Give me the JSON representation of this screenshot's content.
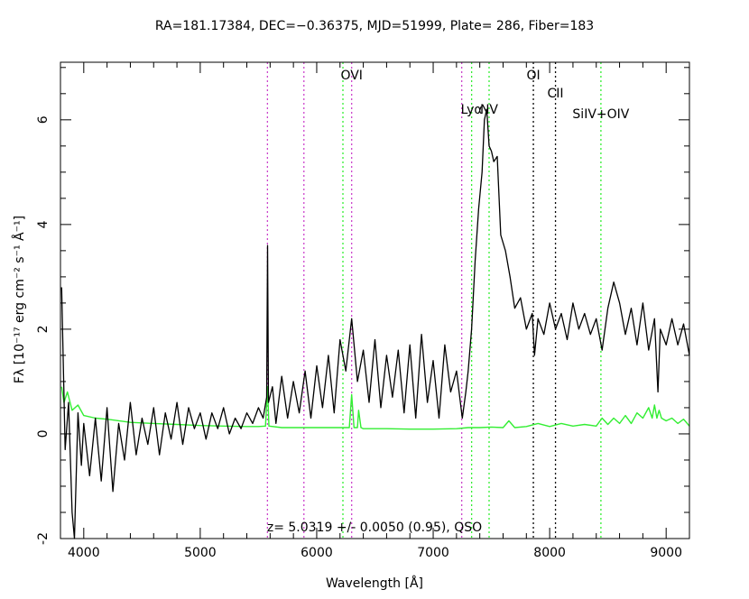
{
  "chart_data": {
    "type": "line",
    "title": "RA=181.17384, DEC=−0.36375, MJD=51999, Plate= 286, Fiber=183",
    "xlabel": "Wavelength [Å]",
    "ylabel": "Fλ [10⁻¹⁷ erg cm⁻² s⁻¹ Å⁻¹]",
    "xlim": [
      3800,
      9200
    ],
    "ylim": [
      -2,
      7.1
    ],
    "x_ticks": [
      4000,
      5000,
      6000,
      7000,
      8000,
      9000
    ],
    "y_ticks": [
      -2,
      0,
      2,
      4,
      6
    ],
    "annotation": "z= 5.0319 +/- 0.0050 (0.95), QSO",
    "series": [
      {
        "color": "#000000",
        "role": "flux",
        "x": [
          3810,
          3840,
          3870,
          3900,
          3920,
          3950,
          3980,
          4000,
          4050,
          4100,
          4150,
          4200,
          4250,
          4300,
          4350,
          4400,
          4450,
          4500,
          4550,
          4600,
          4650,
          4700,
          4750,
          4800,
          4850,
          4900,
          4950,
          5000,
          5050,
          5100,
          5150,
          5200,
          5250,
          5300,
          5350,
          5400,
          5450,
          5500,
          5540,
          5570,
          5578,
          5586,
          5620,
          5650,
          5700,
          5750,
          5800,
          5850,
          5900,
          5950,
          6000,
          6050,
          6100,
          6150,
          6200,
          6250,
          6300,
          6350,
          6400,
          6450,
          6500,
          6550,
          6600,
          6650,
          6700,
          6750,
          6800,
          6850,
          6900,
          6950,
          7000,
          7050,
          7100,
          7150,
          7200,
          7250,
          7280,
          7300,
          7330,
          7360,
          7390,
          7420,
          7440,
          7460,
          7480,
          7500,
          7520,
          7550,
          7580,
          7620,
          7660,
          7700,
          7750,
          7800,
          7850,
          7870,
          7900,
          7950,
          8000,
          8050,
          8100,
          8150,
          8200,
          8250,
          8300,
          8350,
          8400,
          8450,
          8500,
          8550,
          8600,
          8650,
          8700,
          8750,
          8800,
          8850,
          8900,
          8930,
          8950,
          9000,
          9050,
          9100,
          9150,
          9200
        ],
        "y": [
          2.8,
          -0.3,
          0.6,
          -1.5,
          -2.0,
          0.4,
          -0.6,
          0.2,
          -0.8,
          0.3,
          -0.9,
          0.5,
          -1.1,
          0.2,
          -0.5,
          0.6,
          -0.4,
          0.3,
          -0.2,
          0.5,
          -0.4,
          0.4,
          -0.1,
          0.6,
          -0.2,
          0.5,
          0.1,
          0.4,
          -0.1,
          0.4,
          0.1,
          0.5,
          0.0,
          0.3,
          0.1,
          0.4,
          0.2,
          0.5,
          0.3,
          0.7,
          3.6,
          0.6,
          0.9,
          0.2,
          1.1,
          0.3,
          1.0,
          0.4,
          1.2,
          0.3,
          1.3,
          0.5,
          1.5,
          0.4,
          1.8,
          1.2,
          2.2,
          1.0,
          1.6,
          0.6,
          1.8,
          0.5,
          1.5,
          0.7,
          1.6,
          0.4,
          1.7,
          0.3,
          1.9,
          0.6,
          1.4,
          0.3,
          1.7,
          0.8,
          1.2,
          0.3,
          0.8,
          1.2,
          2.0,
          3.3,
          4.3,
          5.0,
          6.0,
          6.2,
          5.5,
          5.4,
          5.2,
          5.3,
          3.8,
          3.5,
          3.0,
          2.4,
          2.6,
          2.0,
          2.3,
          1.5,
          2.2,
          1.9,
          2.5,
          2.0,
          2.3,
          1.8,
          2.5,
          2.0,
          2.3,
          1.9,
          2.2,
          1.6,
          2.4,
          2.9,
          2.5,
          1.9,
          2.4,
          1.7,
          2.5,
          1.6,
          2.2,
          0.8,
          2.0,
          1.7,
          2.2,
          1.7,
          2.1,
          1.5
        ]
      },
      {
        "color": "#33ee33",
        "role": "noise",
        "x": [
          3810,
          3830,
          3860,
          3900,
          3950,
          4000,
          4100,
          4200,
          4400,
          4600,
          4800,
          5000,
          5200,
          5400,
          5500,
          5560,
          5578,
          5590,
          5700,
          6000,
          6250,
          6280,
          6300,
          6320,
          6350,
          6360,
          6380,
          6400,
          6600,
          6800,
          7000,
          7200,
          7300,
          7400,
          7500,
          7600,
          7650,
          7700,
          7800,
          7900,
          8000,
          8100,
          8200,
          8300,
          8400,
          8450,
          8500,
          8550,
          8600,
          8650,
          8700,
          8750,
          8800,
          8850,
          8880,
          8900,
          8920,
          8940,
          8960,
          9000,
          9050,
          9100,
          9150,
          9200
        ],
        "y": [
          0.9,
          0.6,
          0.8,
          0.45,
          0.55,
          0.35,
          0.3,
          0.28,
          0.22,
          0.2,
          0.18,
          0.16,
          0.15,
          0.14,
          0.14,
          0.15,
          0.9,
          0.15,
          0.12,
          0.12,
          0.12,
          0.12,
          0.75,
          0.12,
          0.12,
          0.45,
          0.12,
          0.1,
          0.1,
          0.09,
          0.09,
          0.1,
          0.12,
          0.12,
          0.13,
          0.12,
          0.25,
          0.12,
          0.14,
          0.2,
          0.14,
          0.2,
          0.15,
          0.18,
          0.15,
          0.3,
          0.18,
          0.3,
          0.2,
          0.35,
          0.2,
          0.4,
          0.3,
          0.5,
          0.3,
          0.55,
          0.3,
          0.45,
          0.3,
          0.25,
          0.3,
          0.2,
          0.28,
          0.15
        ]
      }
    ],
    "line_markers": [
      {
        "wavelength": 5577,
        "color": "#cc44cc",
        "label": ""
      },
      {
        "wavelength": 5890,
        "color": "#cc44cc",
        "label": ""
      },
      {
        "wavelength": 6225,
        "color": "#33ee33",
        "label": ""
      },
      {
        "wavelength": 6300,
        "color": "#cc44cc",
        "label": "OVI"
      },
      {
        "wavelength": 7245,
        "color": "#cc44cc",
        "label": ""
      },
      {
        "wavelength": 7330,
        "color": "#33ee33",
        "label": "Lyα"
      },
      {
        "wavelength": 7480,
        "color": "#33ee33",
        "label": "NV"
      },
      {
        "wavelength": 7860,
        "color": "#000000",
        "label": "OI"
      },
      {
        "wavelength": 8050,
        "color": "#000000",
        "label": "CII"
      },
      {
        "wavelength": 8440,
        "color": "#33ee33",
        "label": "SiIV+OIV"
      }
    ]
  }
}
